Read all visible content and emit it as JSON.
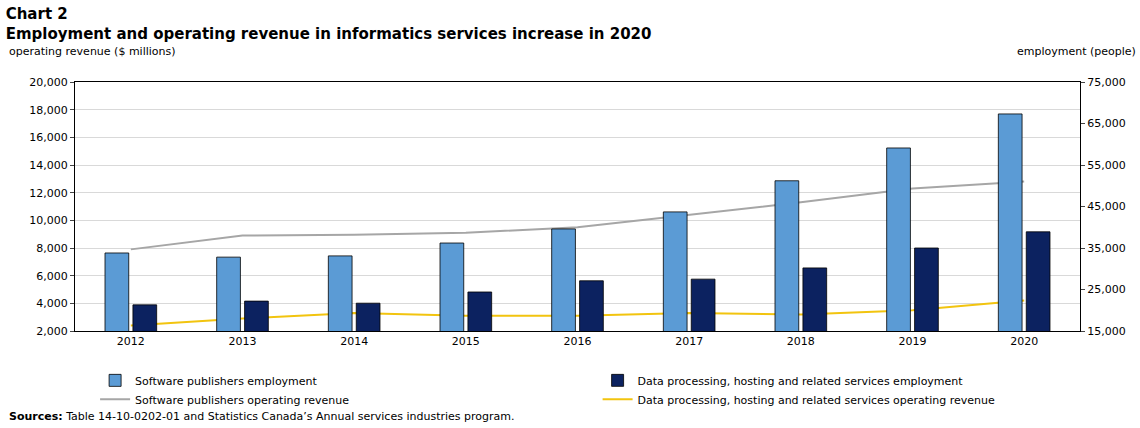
{
  "chart_data": {
    "type": "bar",
    "title": "Chart 2",
    "subtitle": "Employment and operating revenue in informatics services increase in 2020",
    "ylabel": "operating revenue ($ millions)",
    "y2label": "employment (people)",
    "source_label": "Sources:",
    "source": "Table 14-10-0202-01 and Statistics Canada’s Annual services industries program.",
    "categories": [
      "2012",
      "2013",
      "2014",
      "2015",
      "2016",
      "2017",
      "2018",
      "2019",
      "2020"
    ],
    "series": [
      {
        "name": "Software publishers employment",
        "type": "bar",
        "axis": "y2",
        "color": "#5b9bd5",
        "values": [
          33800,
          32800,
          33100,
          36200,
          39600,
          43700,
          51200,
          59100,
          67300
        ]
      },
      {
        "name": "Data processing, hosting and related services employment",
        "type": "bar",
        "axis": "y2",
        "color": "#0c2260",
        "values": [
          21300,
          22200,
          21700,
          24400,
          27100,
          27500,
          30200,
          35000,
          38900
        ]
      },
      {
        "name": "Software publishers operating revenue",
        "type": "line",
        "axis": "y",
        "color": "#a6a6a6",
        "values": [
          7900,
          8900,
          8950,
          9100,
          9500,
          10400,
          11300,
          12300,
          12800
        ]
      },
      {
        "name": "Data processing, hosting and related services operating revenue",
        "type": "line",
        "axis": "y",
        "color": "#f2c40f",
        "values": [
          2400,
          2900,
          3300,
          3100,
          3100,
          3300,
          3200,
          3500,
          4200
        ]
      }
    ],
    "ylim": [
      2000,
      20000
    ],
    "yticks": [
      {
        "value": 2000,
        "label": "2,000"
      },
      {
        "value": 4000,
        "label": "4,000"
      },
      {
        "value": 6000,
        "label": "6,000"
      },
      {
        "value": 8000,
        "label": "8,000"
      },
      {
        "value": 10000,
        "label": "10,000"
      },
      {
        "value": 12000,
        "label": "12,000"
      },
      {
        "value": 14000,
        "label": "14,000"
      },
      {
        "value": 16000,
        "label": "16,000"
      },
      {
        "value": 18000,
        "label": "18,000"
      },
      {
        "value": 20000,
        "label": "20,000"
      }
    ],
    "y2lim": [
      15000,
      75000
    ],
    "y2ticks": [
      {
        "value": 15000,
        "label": "15,000"
      },
      {
        "value": 25000,
        "label": "25,000"
      },
      {
        "value": 35000,
        "label": "35,000"
      },
      {
        "value": 45000,
        "label": "45,000"
      },
      {
        "value": 55000,
        "label": "55,000"
      },
      {
        "value": 65000,
        "label": "65,000"
      },
      {
        "value": 75000,
        "label": "75,000"
      }
    ],
    "grid": true,
    "legend": "bottom"
  }
}
